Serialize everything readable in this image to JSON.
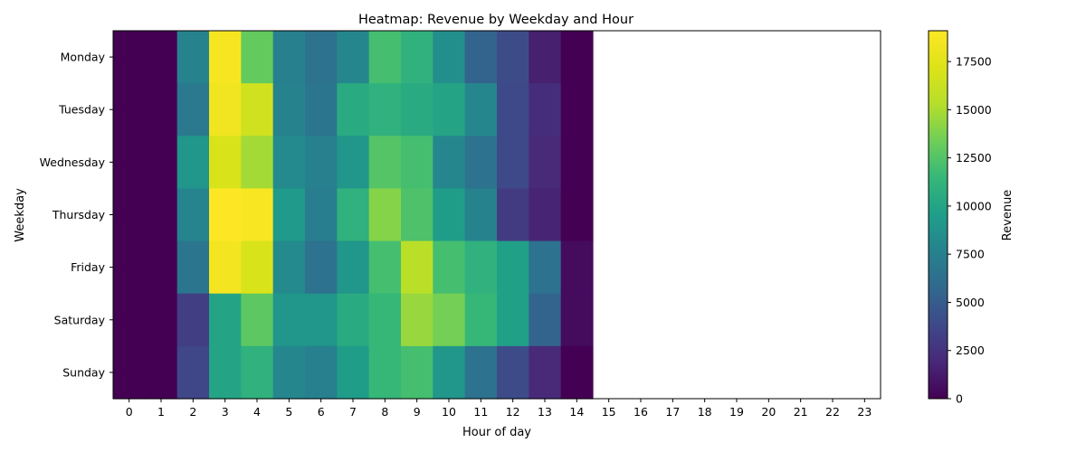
{
  "chart_data": {
    "type": "heatmap",
    "title": "Heatmap: Revenue by Weekday and Hour",
    "xlabel": "Hour of day",
    "ylabel": "Weekday",
    "colorbar_label": "Revenue",
    "colormap": "viridis",
    "vmin": 0,
    "vmax": 19100,
    "colorbar_ticks": [
      0,
      2500,
      5000,
      7500,
      10000,
      12500,
      15000,
      17500
    ],
    "x_categories": [
      "0",
      "1",
      "2",
      "3",
      "4",
      "5",
      "6",
      "7",
      "8",
      "9",
      "10",
      "11",
      "12",
      "13",
      "14",
      "15",
      "16",
      "17",
      "18",
      "19",
      "20",
      "21",
      "22",
      "23"
    ],
    "y_categories": [
      "Monday",
      "Tuesday",
      "Wednesday",
      "Thursday",
      "Friday",
      "Saturday",
      "Sunday"
    ],
    "values": [
      [
        0,
        0,
        7700,
        18700,
        13000,
        7500,
        6500,
        8000,
        12000,
        11000,
        8500,
        5500,
        4000,
        1500,
        0,
        null,
        null,
        null,
        null,
        null,
        null,
        null,
        null,
        null
      ],
      [
        0,
        0,
        7000,
        18300,
        16500,
        7700,
        6700,
        10500,
        11000,
        10500,
        10000,
        8000,
        3800,
        2200,
        0,
        null,
        null,
        null,
        null,
        null,
        null,
        null,
        null,
        null
      ],
      [
        0,
        0,
        9000,
        17000,
        14800,
        8200,
        7500,
        9000,
        12500,
        12000,
        8000,
        6500,
        3800,
        2000,
        0,
        null,
        null,
        null,
        null,
        null,
        null,
        null,
        null,
        null
      ],
      [
        0,
        0,
        7800,
        19100,
        18800,
        9300,
        7300,
        11000,
        14000,
        12300,
        9500,
        7700,
        3000,
        1700,
        0,
        null,
        null,
        null,
        null,
        null,
        null,
        null,
        null,
        null
      ],
      [
        0,
        0,
        6700,
        18500,
        17000,
        8200,
        6500,
        9000,
        12000,
        15500,
        12000,
        11000,
        9700,
        6500,
        500,
        null,
        null,
        null,
        null,
        null,
        null,
        null,
        null,
        null
      ],
      [
        0,
        0,
        3200,
        10000,
        12800,
        9000,
        9000,
        10500,
        11500,
        14500,
        13500,
        11500,
        9700,
        5500,
        500,
        null,
        null,
        null,
        null,
        null,
        null,
        null,
        null,
        null
      ],
      [
        0,
        0,
        3700,
        10000,
        11000,
        8000,
        7500,
        9500,
        11500,
        12000,
        9000,
        6500,
        4000,
        2000,
        0,
        null,
        null,
        null,
        null,
        null,
        null,
        null,
        null,
        null
      ]
    ]
  }
}
